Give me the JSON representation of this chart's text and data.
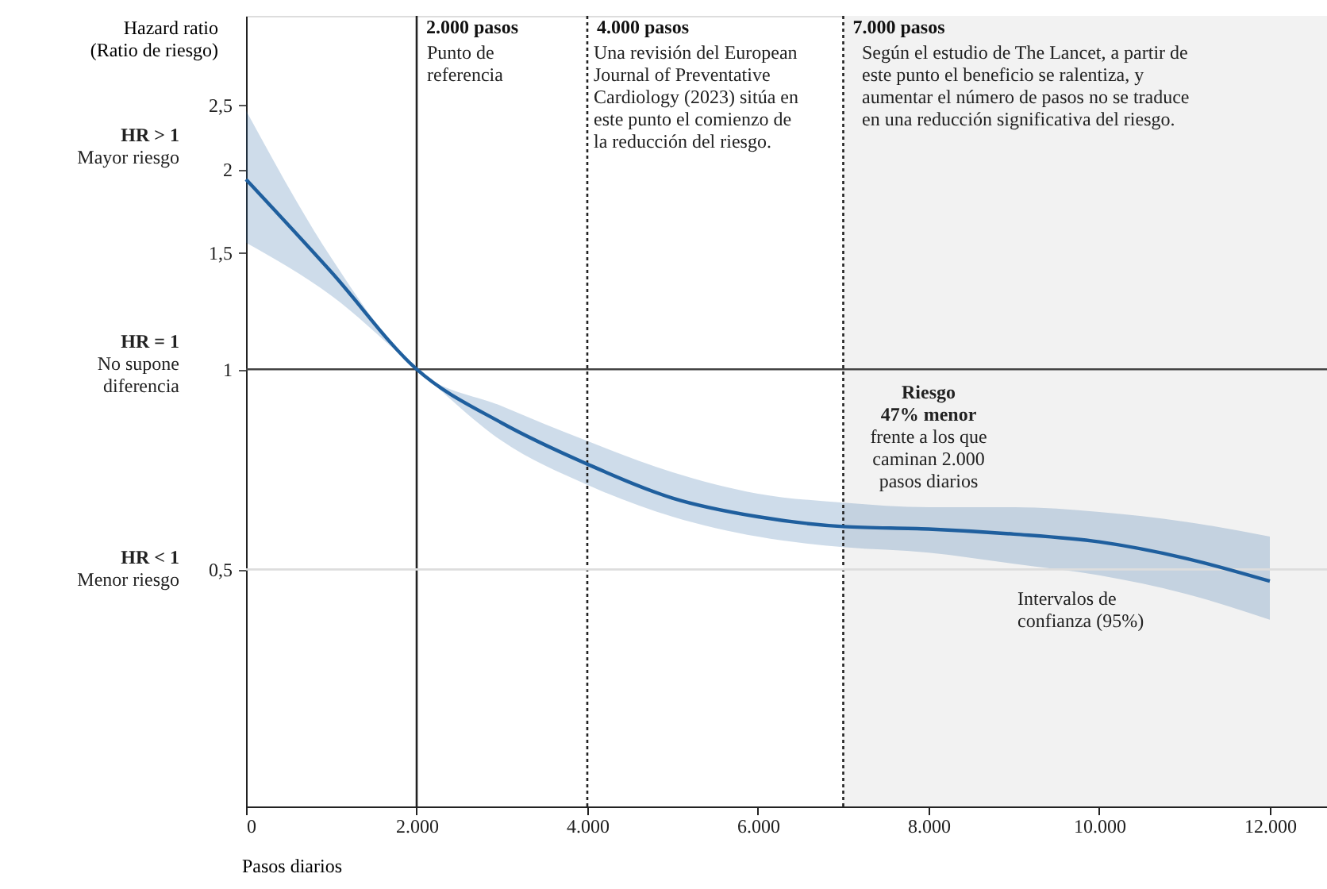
{
  "chart_data": {
    "type": "line",
    "ylabel": "Hazard ratio\n(Ratio de riesgo)",
    "xlabel": "Pasos diarios",
    "x": [
      0,
      1000,
      2000,
      3000,
      4000,
      5000,
      6000,
      7000,
      8000,
      9000,
      10000,
      11000,
      12000
    ],
    "series": [
      {
        "color": "#1f5f9e",
        "values": [
          1.93,
          1.4,
          1.0,
          0.83,
          0.72,
          0.64,
          0.6,
          0.58,
          0.575,
          0.565,
          0.55,
          0.52,
          0.48
        ],
        "lower": [
          1.55,
          1.29,
          1.0,
          0.78,
          0.67,
          0.6,
          0.56,
          0.54,
          0.53,
          0.51,
          0.49,
          0.46,
          0.42
        ],
        "upper": [
          2.45,
          1.47,
          1.0,
          0.88,
          0.78,
          0.7,
          0.65,
          0.63,
          0.62,
          0.62,
          0.61,
          0.59,
          0.56
        ]
      }
    ],
    "log": "y",
    "grid": false,
    "marker": "none",
    "line_style": "solid",
    "xlim": [
      0,
      12670
    ],
    "xticks": [
      {
        "value": 0,
        "label": "0"
      },
      {
        "value": 2000,
        "label": "2.000"
      },
      {
        "value": 4000,
        "label": "4.000"
      },
      {
        "value": 6000,
        "label": "6.000"
      },
      {
        "value": 8000,
        "label": "8.000"
      },
      {
        "value": 10000,
        "label": "10.000"
      },
      {
        "value": 12000,
        "label": "12.000"
      }
    ],
    "ylim": [
      0.22,
      3.4
    ],
    "yticks": [
      {
        "value": 0.5,
        "label": "0,5"
      },
      1,
      {
        "value": 1.5,
        "label": "1,5"
      },
      2,
      {
        "value": 2.5,
        "label": "2,5"
      }
    ],
    "ref_lines": [
      {
        "axis": "x",
        "value": 2000,
        "label": "2.000 pasos",
        "color": "#222222",
        "line_style": "solid"
      },
      {
        "axis": "x",
        "value": 4000,
        "label": "4.000 pasos",
        "color": "#222222",
        "line_style": "dotted"
      },
      {
        "axis": "x",
        "value": 7000,
        "label": "7.000 pasos",
        "color": "#222222",
        "line_style": "dotted"
      },
      {
        "axis": "y",
        "value": 1,
        "color": "#444444",
        "line_style": "solid"
      },
      {
        "axis": "y",
        "value": 0.5,
        "color": "#dddddd",
        "line_style": "solid"
      }
    ],
    "bands": [
      {
        "axis": "x",
        "from": 7000,
        "to": 12670,
        "color": "#f2f2f2"
      }
    ],
    "annotations": [
      "HR > 1",
      "Mayor riesgo",
      "HR = 1",
      "No supone\ndiferencia",
      "HR < 1",
      "Menor riesgo",
      "Punto de\nreferencia",
      "Una revisión del European\nJournal of Preventative\nCardiology (2023) sitúa en\neste punto el comienzo de\nla reducción del riesgo.",
      "Según el estudio de The Lancet, a partir de\neste punto el beneficio se ralentiza, y\naumentar el número de pasos no se traduce\nen una reducción significativa del riesgo.",
      "Riesgo\n47% menor\nfrente a los que\ncaminan 2.000\npasos diarios",
      "Intervalos de\nconfianza (95%)"
    ]
  }
}
